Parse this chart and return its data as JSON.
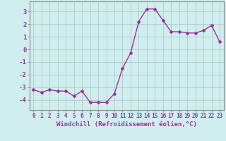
{
  "x": [
    0,
    1,
    2,
    3,
    4,
    5,
    6,
    7,
    8,
    9,
    10,
    11,
    12,
    13,
    14,
    15,
    16,
    17,
    18,
    19,
    20,
    21,
    22,
    23
  ],
  "y": [
    -3.2,
    -3.4,
    -3.2,
    -3.3,
    -3.3,
    -3.7,
    -3.3,
    -4.2,
    -4.2,
    -4.2,
    -3.5,
    -1.5,
    -0.3,
    2.2,
    3.2,
    3.2,
    2.3,
    1.4,
    1.4,
    1.3,
    1.3,
    1.5,
    1.9,
    0.6
  ],
  "line_color": "#993399",
  "marker": "D",
  "markersize": 2.0,
  "linewidth": 1.0,
  "background_color": "#d0eeed",
  "grid_color": "#b0c8c8",
  "xlabel": "Windchill (Refroidissement éolien,°C)",
  "xlabel_fontsize": 6.5,
  "tick_fontsize": 5.5,
  "ytick_fontsize": 6.5,
  "ylim": [
    -4.8,
    3.8
  ],
  "xlim": [
    -0.5,
    23.5
  ],
  "yticks": [
    -4,
    -3,
    -2,
    -1,
    0,
    1,
    2,
    3
  ],
  "xticks": [
    0,
    1,
    2,
    3,
    4,
    5,
    6,
    7,
    8,
    9,
    10,
    11,
    12,
    13,
    14,
    15,
    16,
    17,
    18,
    19,
    20,
    21,
    22,
    23
  ]
}
